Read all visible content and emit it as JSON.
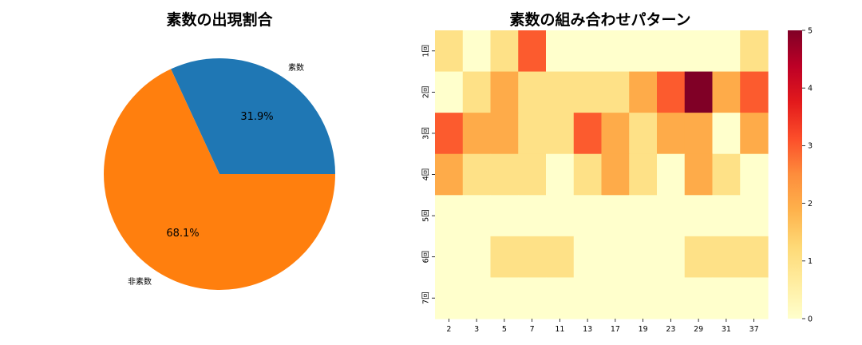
{
  "chart_data": [
    {
      "type": "pie",
      "title": "素数の出現割合",
      "slices": [
        {
          "label": "素数",
          "value": 31.9,
          "pct_label": "31.9%",
          "color": "#1f77b4"
        },
        {
          "label": "非素数",
          "value": 68.1,
          "pct_label": "68.1%",
          "color": "#ff7f0e"
        }
      ]
    },
    {
      "type": "heatmap",
      "title": "素数の組み合わせパターン",
      "row_labels": [
        "1回",
        "2回",
        "3回",
        "4回",
        "5回",
        "6回",
        "7回"
      ],
      "col_labels": [
        "2",
        "3",
        "5",
        "7",
        "11",
        "13",
        "17",
        "19",
        "23",
        "29",
        "31",
        "37"
      ],
      "values": [
        [
          1,
          0,
          1,
          3,
          0,
          0,
          0,
          0,
          0,
          0,
          0,
          1
        ],
        [
          0,
          1,
          2,
          1,
          1,
          1,
          1,
          2,
          3,
          5,
          2,
          3
        ],
        [
          3,
          2,
          2,
          1,
          1,
          3,
          2,
          1,
          2,
          2,
          0,
          2
        ],
        [
          2,
          1,
          1,
          1,
          0,
          1,
          2,
          1,
          0,
          2,
          1,
          0
        ],
        [
          0,
          0,
          0,
          0,
          0,
          0,
          0,
          0,
          0,
          0,
          0,
          0
        ],
        [
          0,
          0,
          1,
          1,
          1,
          0,
          0,
          0,
          0,
          1,
          1,
          1
        ],
        [
          0,
          0,
          0,
          0,
          0,
          0,
          0,
          0,
          0,
          0,
          0,
          0
        ]
      ],
      "vmin": 0,
      "vmax": 5,
      "colormap": "YlOrRd",
      "colorbar_ticks": [
        "0",
        "1",
        "2",
        "3",
        "4",
        "5"
      ]
    }
  ]
}
